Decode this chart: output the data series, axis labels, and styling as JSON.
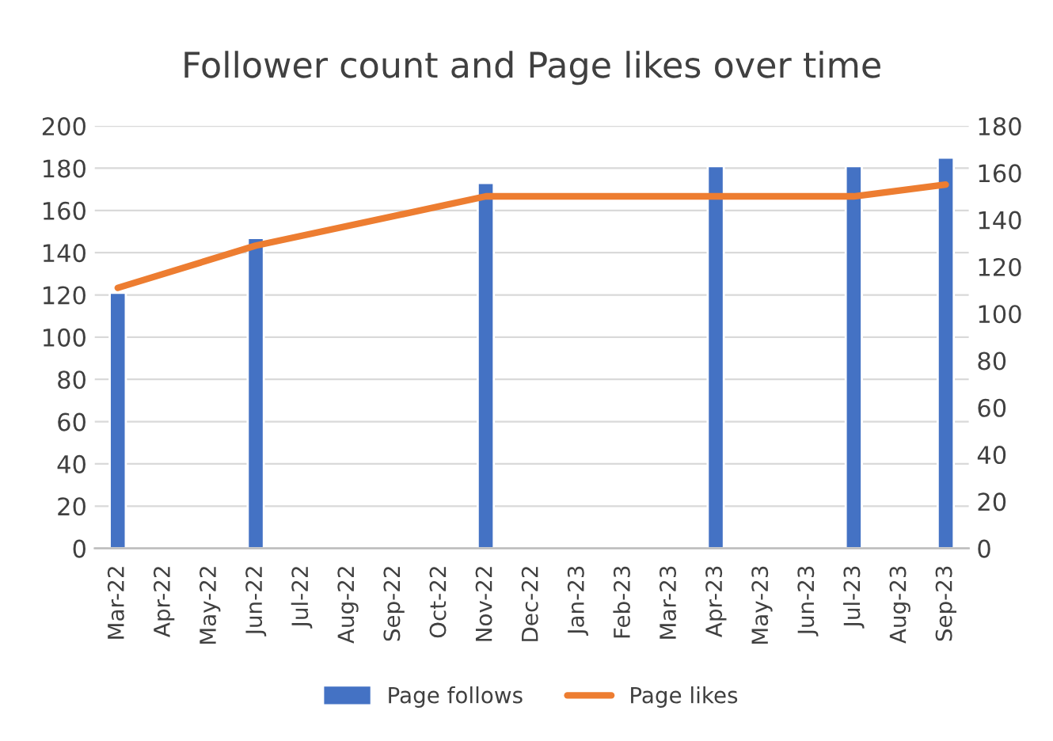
{
  "chart_data": {
    "type": "bar",
    "title": "Follower count and Page likes over time",
    "categories": [
      "Mar-22",
      "Apr-22",
      "May-22",
      "Jun-22",
      "Jul-22",
      "Aug-22",
      "Sep-22",
      "Oct-22",
      "Nov-22",
      "Dec-22",
      "Jan-23",
      "Feb-23",
      "Mar-23",
      "Apr-23",
      "May-23",
      "Jun-23",
      "Jul-23",
      "Aug-23",
      "Sep-23"
    ],
    "series": [
      {
        "name": "Page follows",
        "color": "#4472c4",
        "values": [
          121,
          null,
          null,
          147,
          null,
          null,
          null,
          null,
          173,
          null,
          null,
          null,
          null,
          181,
          null,
          null,
          181,
          null,
          185
        ]
      },
      {
        "name": "Page likes",
        "type": "line",
        "axis": "y2",
        "color": "#ed7d31",
        "values": [
          111,
          null,
          null,
          129,
          null,
          null,
          null,
          null,
          150,
          null,
          null,
          null,
          null,
          150,
          null,
          null,
          150,
          null,
          155
        ]
      }
    ],
    "ylim": [
      0,
      200
    ],
    "yticks": [
      0,
      20,
      40,
      60,
      80,
      100,
      120,
      140,
      160,
      180,
      200
    ],
    "y2lim": [
      0,
      180
    ],
    "y2ticks": [
      0,
      20,
      40,
      60,
      80,
      100,
      120,
      140,
      160,
      180
    ],
    "grid": "y",
    "legend": "bottom"
  }
}
